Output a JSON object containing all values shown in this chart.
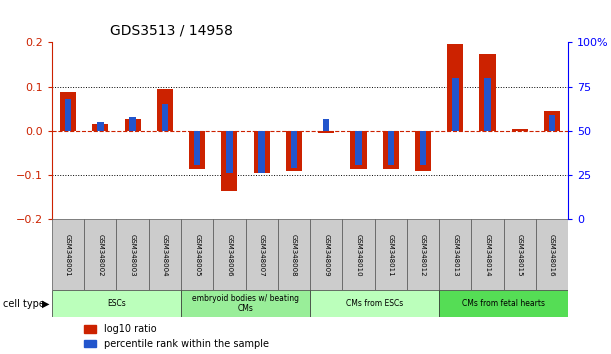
{
  "title": "GDS3513 / 14958",
  "samples": [
    "GSM348001",
    "GSM348002",
    "GSM348003",
    "GSM348004",
    "GSM348005",
    "GSM348006",
    "GSM348007",
    "GSM348008",
    "GSM348009",
    "GSM348010",
    "GSM348011",
    "GSM348012",
    "GSM348013",
    "GSM348014",
    "GSM348015",
    "GSM348016"
  ],
  "log10_ratio": [
    0.088,
    0.015,
    0.028,
    0.095,
    -0.085,
    -0.135,
    -0.095,
    -0.09,
    -0.005,
    -0.085,
    -0.085,
    -0.09,
    0.197,
    0.175,
    0.005,
    0.045
  ],
  "percentile_rank_pct": [
    68,
    55,
    58,
    65,
    31,
    26,
    26,
    29,
    57,
    31,
    31,
    31,
    80,
    80,
    50,
    59
  ],
  "cell_groups": [
    {
      "label": "ESCs",
      "start": 0,
      "end": 3,
      "color": "#bbffbb"
    },
    {
      "label": "embryoid bodies w/ beating\nCMs",
      "start": 4,
      "end": 7,
      "color": "#99ee99"
    },
    {
      "label": "CMs from ESCs",
      "start": 8,
      "end": 11,
      "color": "#bbffbb"
    },
    {
      "label": "CMs from fetal hearts",
      "start": 12,
      "end": 15,
      "color": "#55dd55"
    }
  ],
  "ylim": [
    -0.2,
    0.2
  ],
  "yticks": [
    -0.2,
    -0.1,
    0.0,
    0.1,
    0.2
  ],
  "y2ticks": [
    0,
    25,
    50,
    75,
    100
  ],
  "bar_color_red": "#cc2200",
  "bar_color_blue": "#2255cc",
  "bar_width": 0.5,
  "blue_bar_width": 0.2
}
